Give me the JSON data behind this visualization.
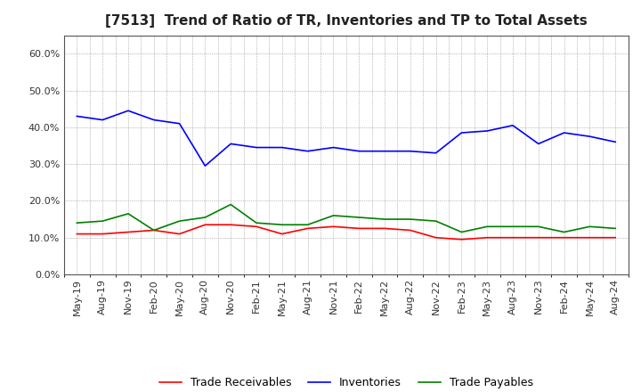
{
  "title": "[7513]  Trend of Ratio of TR, Inventories and TP to Total Assets",
  "x_labels": [
    "May-19",
    "Aug-19",
    "Nov-19",
    "Feb-20",
    "May-20",
    "Aug-20",
    "Nov-20",
    "Feb-21",
    "May-21",
    "Aug-21",
    "Nov-21",
    "Feb-22",
    "May-22",
    "Aug-22",
    "Nov-22",
    "Feb-23",
    "May-23",
    "Aug-23",
    "Nov-23",
    "Feb-24",
    "May-24",
    "Aug-24"
  ],
  "trade_receivables": [
    0.11,
    0.11,
    0.115,
    0.12,
    0.11,
    0.135,
    0.135,
    0.13,
    0.11,
    0.125,
    0.13,
    0.125,
    0.125,
    0.12,
    0.1,
    0.095,
    0.1,
    0.1,
    0.1,
    0.1,
    0.1,
    0.1
  ],
  "inventories": [
    0.43,
    0.42,
    0.445,
    0.42,
    0.41,
    0.295,
    0.355,
    0.345,
    0.345,
    0.335,
    0.345,
    0.335,
    0.335,
    0.335,
    0.33,
    0.385,
    0.39,
    0.405,
    0.355,
    0.385,
    0.375,
    0.36
  ],
  "trade_payables": [
    0.14,
    0.145,
    0.165,
    0.12,
    0.145,
    0.155,
    0.19,
    0.14,
    0.135,
    0.135,
    0.16,
    0.155,
    0.15,
    0.15,
    0.145,
    0.115,
    0.13,
    0.13,
    0.13,
    0.115,
    0.13,
    0.125
  ],
  "ylim": [
    0.0,
    0.65
  ],
  "yticks": [
    0.0,
    0.1,
    0.2,
    0.3,
    0.4,
    0.5,
    0.6
  ],
  "line_colors": {
    "trade_receivables": "#ff0000",
    "inventories": "#0000ff",
    "trade_payables": "#008000"
  },
  "background_color": "#ffffff",
  "plot_bg_color": "#f0f0f0",
  "grid_color": "#888888",
  "legend_labels": [
    "Trade Receivables",
    "Inventories",
    "Trade Payables"
  ],
  "title_fontsize": 11,
  "tick_fontsize": 8,
  "legend_fontsize": 9
}
